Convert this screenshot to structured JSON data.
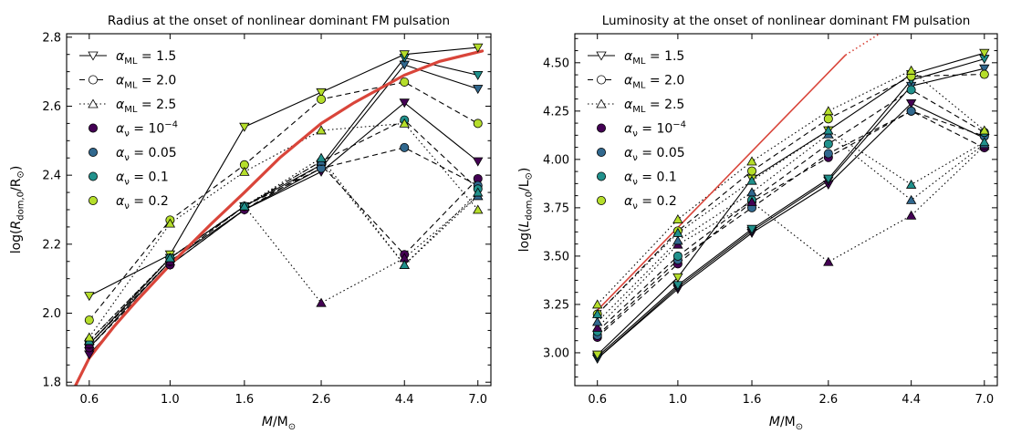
{
  "chart_data": [
    {
      "type": "line",
      "title": "Radius at the onset of nonlinear dominant FM pulsation",
      "xlabel": "M/M⊙",
      "ylabel": "log(Rdom,0/R⊙)",
      "x_scale": "log",
      "categories": [
        "0.6",
        "1.0",
        "1.6",
        "2.6",
        "4.4",
        "7.0"
      ],
      "x": [
        0.6,
        1.0,
        1.6,
        2.6,
        4.4,
        7.0
      ],
      "ylim": [
        1.79,
        2.81
      ],
      "yticks": [
        "1.8",
        "2.0",
        "2.2",
        "2.4",
        "2.6",
        "2.8"
      ],
      "series": [
        {
          "ml": 1.5,
          "nu": "0.0001",
          "values": [
            1.88,
            2.14,
            2.3,
            2.41,
            2.61,
            2.44
          ]
        },
        {
          "ml": 1.5,
          "nu": "0.05",
          "values": [
            1.9,
            2.15,
            2.3,
            2.42,
            2.72,
            2.65
          ]
        },
        {
          "ml": 1.5,
          "nu": "0.1",
          "values": [
            1.91,
            2.16,
            2.31,
            2.43,
            2.74,
            2.69
          ]
        },
        {
          "ml": 1.5,
          "nu": "0.2",
          "values": [
            2.05,
            2.17,
            2.54,
            2.64,
            2.75,
            2.77
          ]
        },
        {
          "ml": 2.0,
          "nu": "0.0001",
          "values": [
            1.9,
            2.14,
            2.3,
            2.43,
            2.17,
            2.39
          ]
        },
        {
          "ml": 2.0,
          "nu": "0.05",
          "values": [
            1.91,
            2.15,
            2.31,
            2.42,
            2.48,
            2.37
          ]
        },
        {
          "ml": 2.0,
          "nu": "0.1",
          "values": [
            1.92,
            2.16,
            2.31,
            2.44,
            2.56,
            2.36
          ]
        },
        {
          "ml": 2.0,
          "nu": "0.2",
          "values": [
            1.98,
            2.27,
            2.43,
            2.62,
            2.67,
            2.55
          ]
        },
        {
          "ml": 2.5,
          "nu": "0.0001",
          "values": [
            1.91,
            2.15,
            2.31,
            2.03,
            2.16,
            2.34
          ]
        },
        {
          "ml": 2.5,
          "nu": "0.05",
          "values": [
            1.92,
            2.16,
            2.31,
            2.44,
            2.14,
            2.34
          ]
        },
        {
          "ml": 2.5,
          "nu": "0.1",
          "values": [
            1.92,
            2.16,
            2.31,
            2.45,
            2.14,
            2.35
          ]
        },
        {
          "ml": 2.5,
          "nu": "0.2",
          "values": [
            1.93,
            2.26,
            2.41,
            2.53,
            2.55,
            2.3
          ]
        }
      ],
      "fit_curve": {
        "color": "#d9453a",
        "x": [
          0.55,
          0.6,
          0.7,
          0.8,
          1.0,
          1.3,
          1.6,
          2.0,
          2.6,
          3.2,
          4.4,
          5.5,
          7.2
        ],
        "y": [
          1.79,
          1.87,
          1.96,
          2.03,
          2.14,
          2.26,
          2.35,
          2.45,
          2.55,
          2.61,
          2.69,
          2.73,
          2.76
        ]
      },
      "legend": {
        "position": "top-left",
        "entries": [
          {
            "label_main": "α",
            "label_sub": "ML",
            "label_rest": " = 1.5",
            "symbol": "triangle-down",
            "line": "solid"
          },
          {
            "label_main": "α",
            "label_sub": "ML",
            "label_rest": " = 2.0",
            "symbol": "circle",
            "line": "dashed"
          },
          {
            "label_main": "α",
            "label_sub": "ML",
            "label_rest": " = 2.5",
            "symbol": "triangle-up",
            "line": "dotted"
          },
          {
            "label_main": "α",
            "label_sub": "ν",
            "label_rest": " = 10",
            "label_sup": "−4",
            "symbol": "circle",
            "color": "#440154"
          },
          {
            "label_main": "α",
            "label_sub": "ν",
            "label_rest": " = 0.05",
            "symbol": "circle",
            "color": "#31688e"
          },
          {
            "label_main": "α",
            "label_sub": "ν",
            "label_rest": " = 0.1",
            "symbol": "circle",
            "color": "#21918c"
          },
          {
            "label_main": "α",
            "label_sub": "ν",
            "label_rest": " = 0.2",
            "symbol": "circle",
            "color": "#b5de2b"
          }
        ]
      }
    },
    {
      "type": "line",
      "title": "Luminosity at the onset of nonlinear dominant FM pulsation",
      "xlabel": "M/M⊙",
      "ylabel": "log(Ldom,0/L⊙)",
      "x_scale": "log",
      "categories": [
        "0.6",
        "1.0",
        "1.6",
        "2.6",
        "4.4",
        "7.0"
      ],
      "x": [
        0.6,
        1.0,
        1.6,
        2.6,
        4.4,
        7.0
      ],
      "ylim": [
        2.83,
        4.65
      ],
      "yticks": [
        "3.00",
        "3.25",
        "3.50",
        "3.75",
        "4.00",
        "4.25",
        "4.50"
      ],
      "series": [
        {
          "ml": 1.5,
          "nu": "0.0001",
          "values": [
            2.97,
            3.33,
            3.62,
            3.87,
            4.29,
            4.11
          ]
        },
        {
          "ml": 1.5,
          "nu": "0.05",
          "values": [
            2.97,
            3.34,
            3.63,
            3.89,
            4.38,
            4.47
          ]
        },
        {
          "ml": 1.5,
          "nu": "0.1",
          "values": [
            2.98,
            3.35,
            3.64,
            3.9,
            4.41,
            4.52
          ]
        },
        {
          "ml": 1.5,
          "nu": "0.2",
          "values": [
            2.99,
            3.39,
            3.9,
            4.15,
            4.44,
            4.55
          ]
        },
        {
          "ml": 2.0,
          "nu": "0.0001",
          "values": [
            3.08,
            3.46,
            3.78,
            4.01,
            4.25,
            4.06
          ]
        },
        {
          "ml": 2.0,
          "nu": "0.05",
          "values": [
            3.09,
            3.48,
            3.75,
            4.03,
            4.25,
            4.12
          ]
        },
        {
          "ml": 2.0,
          "nu": "0.1",
          "values": [
            3.11,
            3.5,
            3.79,
            4.08,
            4.36,
            4.14
          ]
        },
        {
          "ml": 2.0,
          "nu": "0.2",
          "values": [
            3.2,
            3.63,
            3.94,
            4.21,
            4.43,
            4.44
          ]
        },
        {
          "ml": 2.5,
          "nu": "0.0001",
          "values": [
            3.13,
            3.56,
            3.78,
            3.47,
            3.71,
            4.07
          ]
        },
        {
          "ml": 2.5,
          "nu": "0.05",
          "values": [
            3.16,
            3.58,
            3.83,
            4.13,
            3.79,
            4.08
          ]
        },
        {
          "ml": 2.5,
          "nu": "0.1",
          "values": [
            3.2,
            3.62,
            3.89,
            4.15,
            3.87,
            4.09
          ]
        },
        {
          "ml": 2.5,
          "nu": "0.2",
          "values": [
            3.25,
            3.69,
            3.99,
            4.25,
            4.46,
            4.15
          ]
        }
      ],
      "fit_line": {
        "color": "#d9453a",
        "x": [
          0.6,
          2.9
        ],
        "y": [
          3.22,
          4.54
        ],
        "dotted_to": [
          3.6,
          4.65
        ]
      },
      "legend": {
        "position": "top-left",
        "entries": [
          {
            "label_main": "α",
            "label_sub": "ML",
            "label_rest": " = 1.5",
            "symbol": "triangle-down",
            "line": "solid"
          },
          {
            "label_main": "α",
            "label_sub": "ML",
            "label_rest": " = 2.0",
            "symbol": "circle",
            "line": "dashed"
          },
          {
            "label_main": "α",
            "label_sub": "ML",
            "label_rest": " = 2.5",
            "symbol": "triangle-up",
            "line": "dotted"
          },
          {
            "label_main": "α",
            "label_sub": "ν",
            "label_rest": " = 10",
            "label_sup": "−4",
            "symbol": "circle",
            "color": "#440154"
          },
          {
            "label_main": "α",
            "label_sub": "ν",
            "label_rest": " = 0.05",
            "symbol": "circle",
            "color": "#31688e"
          },
          {
            "label_main": "α",
            "label_sub": "ν",
            "label_rest": " = 0.1",
            "symbol": "circle",
            "color": "#21918c"
          },
          {
            "label_main": "α",
            "label_sub": "ν",
            "label_rest": " = 0.2",
            "symbol": "circle",
            "color": "#b5de2b"
          }
        ]
      }
    }
  ],
  "nu_colors": {
    "0.0001": "#440154",
    "0.05": "#31688e",
    "0.1": "#21918c",
    "0.2": "#b5de2b"
  },
  "ml_styles": {
    "1.5": {
      "dash": "",
      "marker": "triangle-down"
    },
    "2.0": {
      "dash": "6,4",
      "marker": "circle"
    },
    "2.5": {
      "dash": "1.5,3",
      "marker": "triangle-up"
    }
  }
}
